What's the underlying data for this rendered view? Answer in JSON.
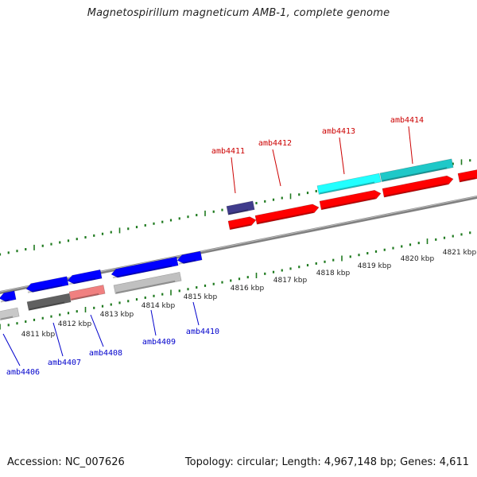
{
  "title": "Magnetospirillum magneticum AMB-1, complete genome",
  "accession": "Accession: NC_007626",
  "summary": "Topology: circular; Length: 4,967,148 bp; Genes: 4,611",
  "scale_labels": [
    "4811 kbp",
    "4812 kbp",
    "4813 kbp",
    "4814 kbp",
    "4815 kbp",
    "4816 kbp",
    "4817 kbp",
    "4818 kbp",
    "4819 kbp",
    "4820 kbp",
    "4821 kbp"
  ],
  "gene_labels_forward": [
    "amb4411",
    "amb4412",
    "amb4413",
    "amb4414"
  ],
  "gene_labels_reverse": [
    "amb4406",
    "amb4407",
    "amb4408",
    "amb4409",
    "amb4410"
  ],
  "colors": {
    "forward_label": "#cc0000",
    "reverse_label": "#0000cc",
    "forward_gene": "#ff0000",
    "reverse_gene": "#0000ff",
    "tick": "#1f7a1f",
    "backbone": "#808080"
  }
}
